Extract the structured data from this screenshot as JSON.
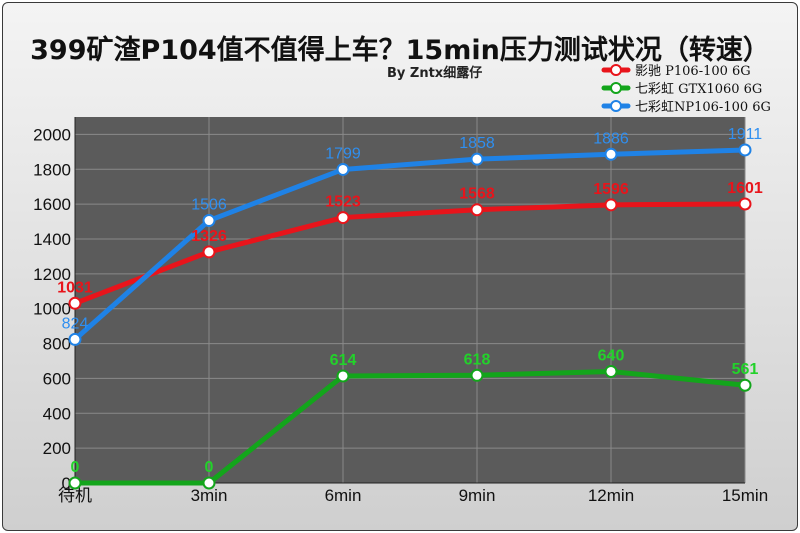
{
  "title": "399矿渣P104值不值得上车？15min压力测试状况（转速）",
  "subtitle": "By Zntx细露仔",
  "colors": {
    "series_1": "#e8141b",
    "series_2": "#13a51b",
    "series_3": "#1f82e6",
    "plot_bg": "#5b5b5b",
    "grid": "#8a8a8a"
  },
  "chart_data": {
    "type": "line",
    "title": "399矿渣P104值不值得上车？15min压力测试状况（转速）",
    "xlabel": "",
    "ylabel": "",
    "categories": [
      "待机",
      "3min",
      "6min",
      "9min",
      "12min",
      "15min"
    ],
    "yticks": [
      0,
      200,
      400,
      600,
      800,
      1000,
      1200,
      1400,
      1600,
      1800,
      2000
    ],
    "ylim": [
      0,
      2100
    ],
    "grid": true,
    "legend_position": "top-right",
    "series": [
      {
        "name": "影驰 P106-100 6G",
        "values": [
          1031,
          1326,
          1523,
          1568,
          1596,
          1601
        ],
        "label_color": "#e8141b",
        "label_weight": "bold"
      },
      {
        "name": "七彩虹 GTX1060 6G",
        "values": [
          0,
          0,
          614,
          618,
          640,
          561
        ],
        "label_color": "#22d22a",
        "label_weight": "bold"
      },
      {
        "name": "七彩虹NP106-100 6G",
        "values": [
          824,
          1506,
          1799,
          1858,
          1886,
          1911
        ],
        "label_color": "#2f8ff0",
        "label_weight": "normal"
      }
    ]
  }
}
